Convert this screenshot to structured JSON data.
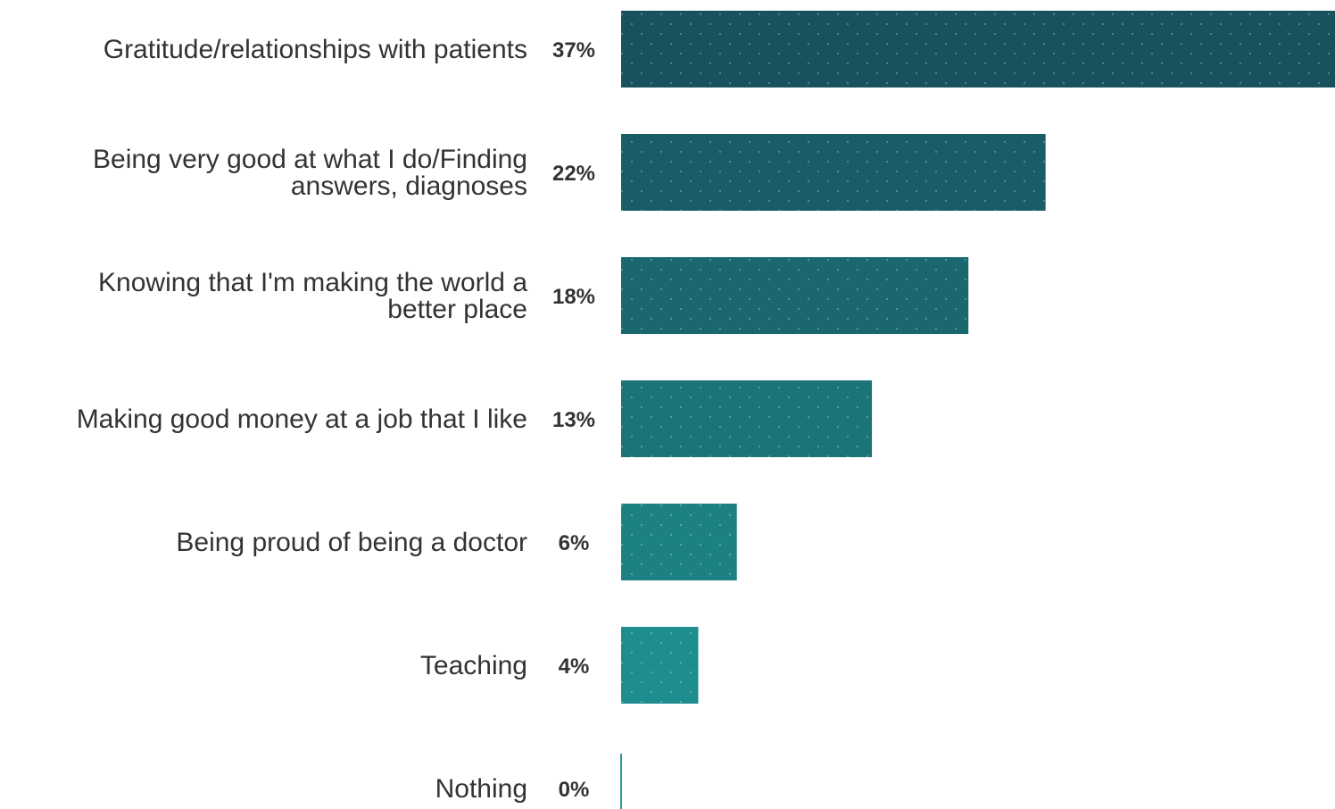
{
  "chart_data": {
    "type": "bar",
    "orientation": "horizontal",
    "categories": [
      [
        "Gratitude/relationships with patients"
      ],
      [
        "Being very good at what I do/Finding",
        "answers, diagnoses"
      ],
      [
        "Knowing that I'm making the world a",
        "better place"
      ],
      [
        "Making good money at a job that I like"
      ],
      [
        "Being proud of being a doctor"
      ],
      [
        "Teaching"
      ],
      [
        "Nothing"
      ]
    ],
    "values": [
      37,
      22,
      18,
      13,
      6,
      4,
      0
    ],
    "value_labels": [
      "37%",
      "22%",
      "18%",
      "13%",
      "6%",
      "4%",
      "0%"
    ],
    "unit": "%",
    "xlim": [
      0,
      37
    ],
    "grid": false,
    "legend": "none",
    "colors": [
      "#17525d",
      "#185d68",
      "#1a6770",
      "#1c7378",
      "#1d8183",
      "#1e8d8e",
      "#2a9aa0"
    ]
  }
}
